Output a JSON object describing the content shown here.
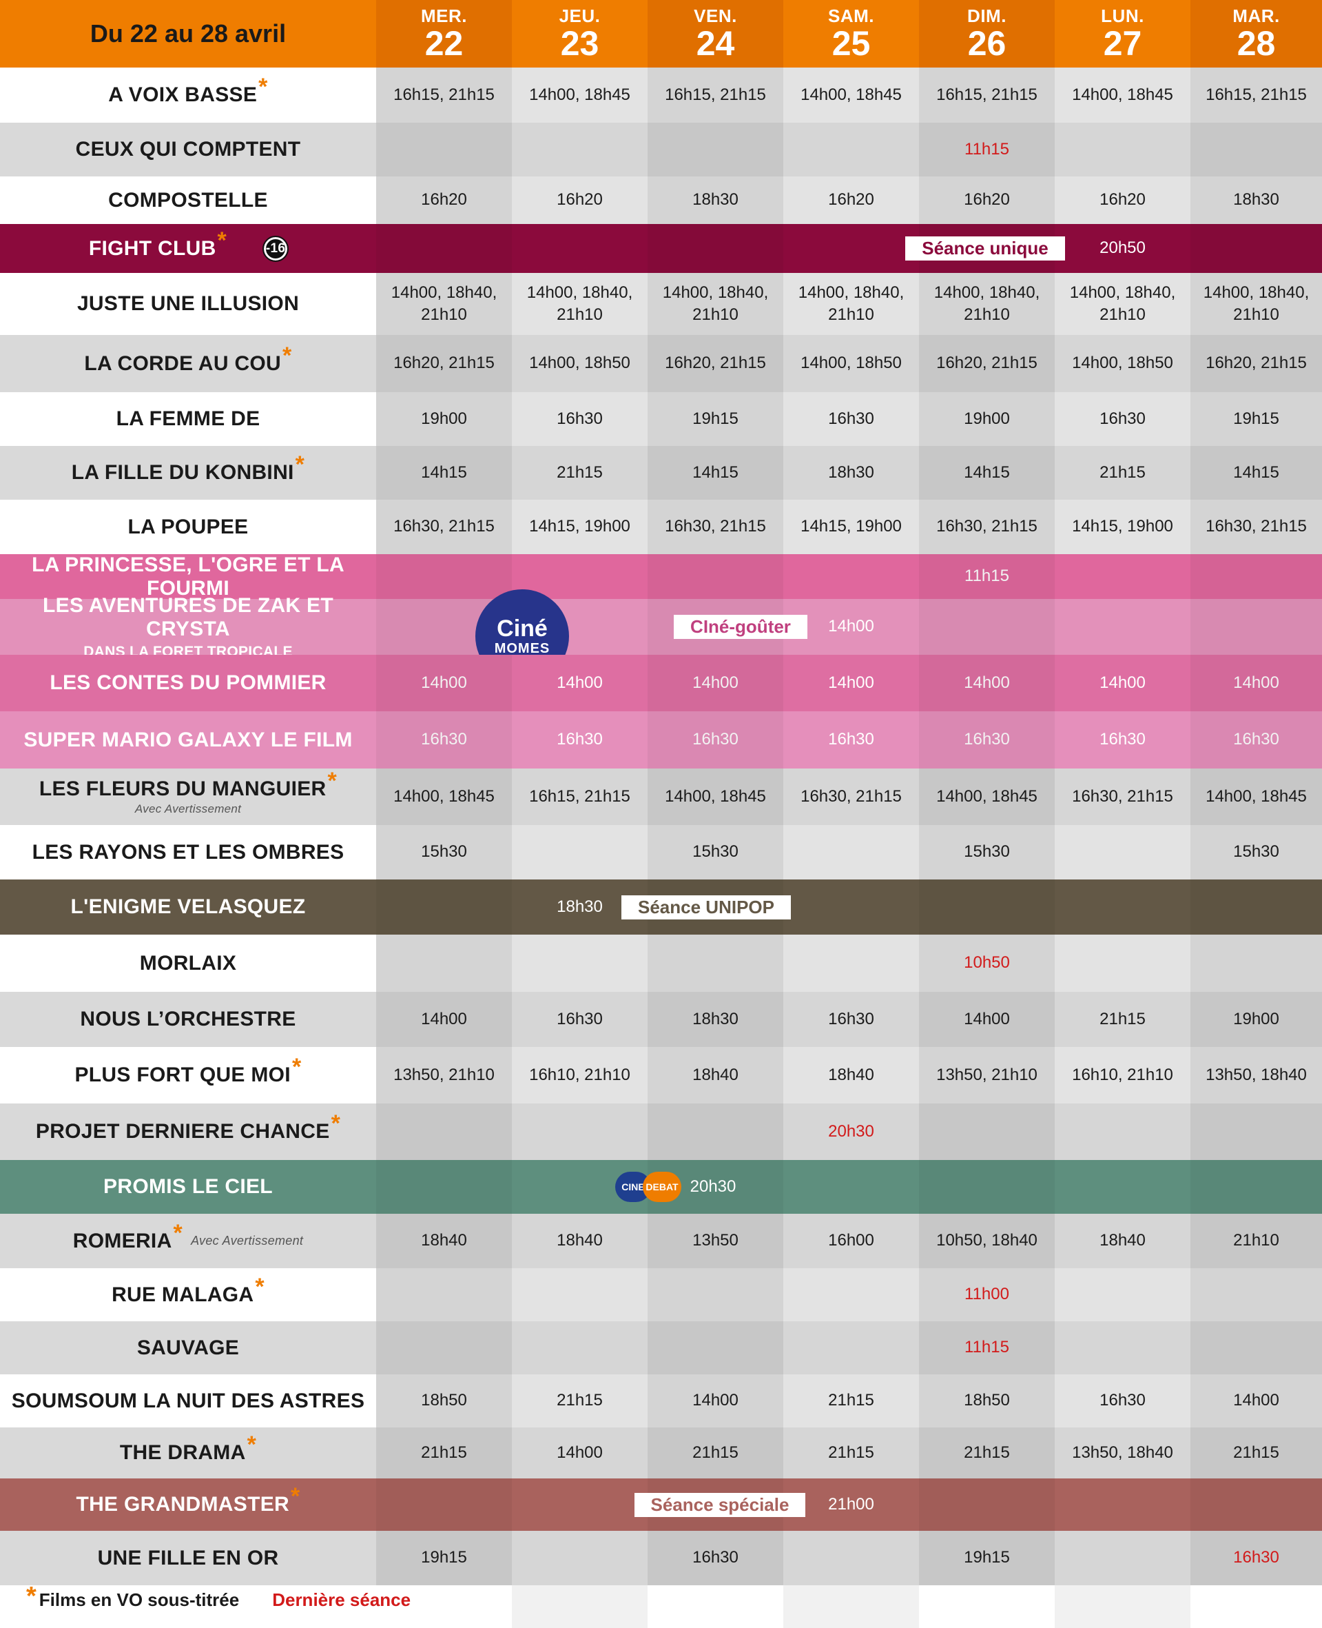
{
  "header": {
    "title": "Du 22 au 28 avril",
    "days": [
      {
        "name": "MER.",
        "num": "22"
      },
      {
        "name": "JEU.",
        "num": "23"
      },
      {
        "name": "VEN.",
        "num": "24"
      },
      {
        "name": "SAM.",
        "num": "25"
      },
      {
        "name": "DIM.",
        "num": "26"
      },
      {
        "name": "LUN.",
        "num": "27"
      },
      {
        "name": "MAR.",
        "num": "28"
      }
    ]
  },
  "colors": {
    "header": "#ef7d00",
    "header_alt": "#e06f00",
    "fight_club": "#8b0a3c",
    "pink_1": "#e0679d",
    "pink_2": "#e391ba",
    "pink_3": "#de6ea2",
    "pink_4": "#e58fbb",
    "enigme": "#635846",
    "promis": "#5e8f7e",
    "grandmaster": "#a9625d",
    "last_session": "#d21a1a",
    "star": "#ef7d00"
  },
  "films": [
    {
      "title": "A VOIX BASSE",
      "star": true,
      "times": [
        "16h15, 21h15",
        "14h00, 18h45",
        "16h15, 21h15",
        "14h00, 18h45",
        "16h15, 21h15",
        "14h00, 18h45",
        "16h15, 21h15"
      ]
    },
    {
      "title": "CEUX QUI COMPTENT",
      "times": [
        "",
        "",
        "",
        "",
        "11h15",
        "",
        ""
      ],
      "last": [
        4
      ]
    },
    {
      "title": "COMPOSTELLE",
      "times": [
        "16h20",
        "16h20",
        "18h30",
        "16h20",
        "16h20",
        "16h20",
        "18h30"
      ]
    },
    {
      "title": "FIGHT CLUB",
      "star": true,
      "special": "fight",
      "badge": "Séance unique",
      "time": "20h50"
    },
    {
      "title": "JUSTE UNE ILLUSION",
      "times": [
        "14h00, 18h40, 21h10",
        "14h00, 18h40, 21h10",
        "14h00, 18h40, 21h10",
        "14h00, 18h40, 21h10",
        "14h00, 18h40, 21h10",
        "14h00, 18h40, 21h10",
        "14h00, 18h40, 21h10"
      ]
    },
    {
      "title": "LA CORDE AU COU",
      "star": true,
      "times": [
        "16h20, 21h15",
        "14h00, 18h50",
        "16h20, 21h15",
        "14h00, 18h50",
        "16h20, 21h15",
        "14h00, 18h50",
        "16h20, 21h15"
      ]
    },
    {
      "title": "LA FEMME DE",
      "times": [
        "19h00",
        "16h30",
        "19h15",
        "16h30",
        "19h00",
        "16h30",
        "19h15"
      ]
    },
    {
      "title": "LA FILLE DU KONBINI",
      "star": true,
      "times": [
        "14h15",
        "21h15",
        "14h15",
        "18h30",
        "14h15",
        "21h15",
        "14h15"
      ]
    },
    {
      "title": "LA POUPEE",
      "times": [
        "16h30, 21h15",
        "14h15, 19h00",
        "16h30, 21h15",
        "14h15, 19h00",
        "16h30, 21h15",
        "14h15, 19h00",
        "16h30, 21h15"
      ]
    },
    {
      "title": "LA PRINCESSE, L'OGRE ET LA FOURMI",
      "special": "pink1",
      "times": [
        "",
        "",
        "",
        "",
        "11h15",
        "",
        ""
      ]
    },
    {
      "title": "LES AVENTURES DE ZAK ET CRYSTA",
      "subtitle": "DANS LA FORET TROPICALE",
      "special": "zak",
      "badge": "CIné-goûter",
      "time": "14h00",
      "logo1": "Ciné",
      "logo2": "MOMES"
    },
    {
      "title": "LES CONTES DU POMMIER",
      "special": "pink3",
      "times": [
        "14h00",
        "14h00",
        "14h00",
        "14h00",
        "14h00",
        "14h00",
        "14h00"
      ]
    },
    {
      "title": "SUPER MARIO GALAXY LE FILM",
      "special": "pink4",
      "times": [
        "16h30",
        "16h30",
        "16h30",
        "16h30",
        "16h30",
        "16h30",
        "16h30"
      ]
    },
    {
      "title": "LES FLEURS DU MANGUIER",
      "star": true,
      "warning": "Avec Avertissement",
      "times": [
        "14h00, 18h45",
        "16h15, 21h15",
        "14h00, 18h45",
        "16h30, 21h15",
        "14h00, 18h45",
        "16h30, 21h15",
        "14h00, 18h45"
      ]
    },
    {
      "title": "LES RAYONS ET LES OMBRES",
      "times": [
        "15h30",
        "",
        "15h30",
        "",
        "15h30",
        "",
        "15h30"
      ]
    },
    {
      "title": "L'ENIGME VELASQUEZ",
      "special": "enigme",
      "time": "18h30",
      "badge": "Séance UNIPOP"
    },
    {
      "title": "MORLAIX",
      "times": [
        "",
        "",
        "",
        "",
        "10h50",
        "",
        ""
      ],
      "last": [
        4
      ]
    },
    {
      "title": "NOUS L’ORCHESTRE",
      "times": [
        "14h00",
        "16h30",
        "18h30",
        "16h30",
        "14h00",
        "21h15",
        "19h00"
      ]
    },
    {
      "title": "PLUS FORT QUE MOI",
      "star": true,
      "times": [
        "13h50, 21h10",
        "16h10, 21h10",
        "18h40",
        "18h40",
        "13h50, 21h10",
        "16h10, 21h10",
        "13h50, 18h40"
      ]
    },
    {
      "title": "PROJET DERNIERE CHANCE",
      "star": true,
      "times": [
        "",
        "",
        "",
        "20h30",
        "",
        "",
        ""
      ],
      "last": [
        3
      ]
    },
    {
      "title": "PROMIS LE CIEL",
      "special": "promis",
      "time": "20h30",
      "logo1": "CINE",
      "logo2": "DEBAT"
    },
    {
      "title": "ROMERIA",
      "star": true,
      "inline_warning": "Avec Avertissement",
      "times": [
        "18h40",
        "18h40",
        "13h50",
        "16h00",
        "10h50, 18h40",
        "18h40",
        "21h10"
      ]
    },
    {
      "title": "RUE MALAGA",
      "star": true,
      "times": [
        "",
        "",
        "",
        "",
        "11h00",
        "",
        ""
      ],
      "last": [
        4
      ]
    },
    {
      "title": "SAUVAGE",
      "times": [
        "",
        "",
        "",
        "",
        "11h15",
        "",
        ""
      ],
      "last": [
        4
      ]
    },
    {
      "title": "SOUMSOUM LA NUIT DES ASTRES",
      "times": [
        "18h50",
        "21h15",
        "14h00",
        "21h15",
        "18h50",
        "16h30",
        "14h00"
      ]
    },
    {
      "title": "THE DRAMA",
      "star": true,
      "times": [
        "21h15",
        "14h00",
        "21h15",
        "21h15",
        "21h15",
        "13h50, 18h40",
        "21h15"
      ]
    },
    {
      "title": "THE GRANDMASTER",
      "star": true,
      "special": "grandmaster",
      "badge": "Séance spéciale",
      "time": "21h00"
    },
    {
      "title": "UNE FILLE EN OR",
      "times": [
        "19h15",
        "",
        "16h30",
        "",
        "19h15",
        "",
        "16h30"
      ],
      "last": [
        6
      ]
    }
  ],
  "legend": {
    "vo": "Films en VO sous-titrée",
    "last": "Dernière séance"
  }
}
